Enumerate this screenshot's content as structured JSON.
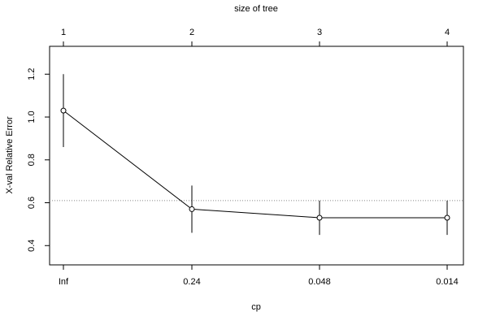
{
  "chart_data": {
    "type": "line",
    "title": "",
    "xlabel": "cp",
    "ylabel": "X-val Relative Error",
    "top_axis_label": "size of tree",
    "x_tick_labels": [
      "Inf",
      "0.24",
      "0.048",
      "0.014"
    ],
    "top_tick_labels": [
      "1",
      "2",
      "3",
      "4"
    ],
    "y_ticks": [
      0.4,
      0.6,
      0.8,
      1.0,
      1.2
    ],
    "y_tick_labels": [
      "0.4",
      "0.6",
      "0.8",
      "1.0",
      "1.2"
    ],
    "ylim": [
      0.31,
      1.33
    ],
    "series": [
      {
        "values": [
          1.03,
          0.57,
          0.53,
          0.53
        ],
        "lower": [
          0.86,
          0.46,
          0.45,
          0.45
        ],
        "upper": [
          1.2,
          0.68,
          0.61,
          0.61
        ]
      }
    ],
    "reference_line": 0.61,
    "grid": false,
    "line_color": "#000000",
    "reference_line_color": "#888888"
  }
}
